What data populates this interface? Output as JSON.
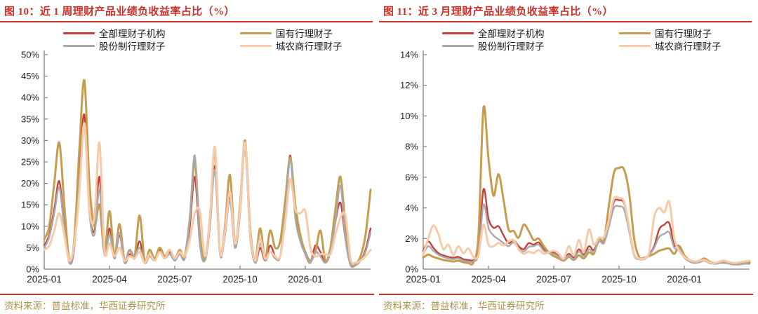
{
  "page": {
    "background": "#ffffff"
  },
  "styles": {
    "title_color": "#c93129",
    "rule_color": "#c93129",
    "source_color": "#b2914e",
    "axis_color": "#7f7f7f",
    "tick_label_color": "#1f1f1f"
  },
  "chart_data": [
    {
      "type": "line",
      "title": "图 10：近 1 周理财产品业绩负收益率占比（%）",
      "source": "资料来源：普益标准，华西证券研究所",
      "legend_position": "top",
      "grid": false,
      "x_unit": "weeks since 2025-01",
      "x_range": [
        0,
        65
      ],
      "ylim": [
        0,
        50
      ],
      "x_ticks": [
        {
          "label": "2025-01",
          "week": 0
        },
        {
          "label": "2025-04",
          "week": 13
        },
        {
          "label": "2025-07",
          "week": 26
        },
        {
          "label": "2025-10",
          "week": 39
        },
        {
          "label": "2026-01",
          "week": 52
        }
      ],
      "y_ticks": [
        {
          "label": "0%",
          "value": 0
        },
        {
          "label": "5%",
          "value": 5
        },
        {
          "label": "10%",
          "value": 10
        },
        {
          "label": "15%",
          "value": 15
        },
        {
          "label": "20%",
          "value": 20
        },
        {
          "label": "25%",
          "value": 25
        },
        {
          "label": "30%",
          "value": 30
        },
        {
          "label": "35%",
          "value": 35
        },
        {
          "label": "40%",
          "value": 40
        },
        {
          "label": "45%",
          "value": 45
        },
        {
          "label": "50%",
          "value": 50
        }
      ],
      "series": [
        {
          "name": "全部理财子机构",
          "color": "#c2413c",
          "values": [
            5.5,
            8,
            14,
            20.5,
            10,
            1.5,
            5,
            22,
            36,
            14,
            9,
            21.5,
            3.5,
            9.5,
            2.5,
            8,
            1.5,
            3.5,
            2.5,
            6.5,
            1.5,
            3,
            2,
            4.5,
            2.5,
            4,
            2,
            4,
            2.5,
            10,
            21.5,
            6,
            2,
            10,
            24,
            3.5,
            8,
            17,
            5,
            13,
            28.5,
            8,
            1.5,
            5,
            2,
            5.5,
            3,
            3,
            14,
            26.5,
            13,
            7,
            3.5,
            1.5,
            5.5,
            4,
            1.5,
            4,
            11,
            15.5,
            7,
            1,
            0.9,
            2,
            4.5,
            9.5
          ]
        },
        {
          "name": "国有行理财子",
          "color": "#c69c4e",
          "values": [
            7,
            10,
            20,
            29.5,
            15,
            2,
            7,
            28,
            44,
            20,
            10,
            15,
            4,
            13.5,
            3,
            10.5,
            2,
            4.5,
            3,
            12.5,
            2,
            4.5,
            2.5,
            5,
            3,
            4.5,
            2.5,
            4.5,
            3,
            12,
            25,
            8,
            2.5,
            12,
            27.5,
            4,
            10,
            22,
            6,
            15,
            30,
            10,
            2,
            9.5,
            2.5,
            9,
            5,
            6.5,
            16,
            26,
            15,
            8,
            4,
            2,
            4,
            9,
            2,
            5,
            14,
            21.5,
            10,
            1.5,
            1.2,
            3,
            8,
            18.5
          ]
        },
        {
          "name": "股份制行理财子",
          "color": "#a9a9a9",
          "values": [
            5,
            7.5,
            13,
            19,
            9.5,
            1.5,
            5,
            20,
            33.5,
            13,
            8,
            18.5,
            3.5,
            8,
            2.5,
            8.5,
            1.5,
            4.5,
            3,
            5,
            1.5,
            3,
            2,
            4,
            2.5,
            3.5,
            2,
            3.5,
            2.5,
            12,
            26.5,
            6,
            2,
            10,
            23,
            3.5,
            8,
            16,
            5,
            13,
            28,
            8,
            1.5,
            6,
            2,
            4,
            2.5,
            3,
            13,
            25.5,
            12,
            6.5,
            3.5,
            1.5,
            4,
            3,
            1.5,
            4,
            11,
            19.5,
            7,
            1,
            0.9,
            2,
            4,
            8.5
          ]
        },
        {
          "name": "城农商行理财子",
          "color": "#f7cba8",
          "values": [
            4.5,
            5.5,
            9,
            13,
            8,
            2,
            6,
            18,
            34,
            14,
            12,
            29.5,
            4.5,
            6,
            3,
            5,
            2,
            3,
            2.5,
            4,
            1.5,
            3.5,
            2,
            4,
            2.5,
            4.5,
            2.5,
            4,
            3,
            7,
            13,
            13.5,
            3,
            12,
            28.5,
            4,
            9,
            18,
            6,
            14,
            29.5,
            9,
            2,
            7,
            2.5,
            4,
            3,
            3,
            11,
            21,
            14,
            13,
            13.5,
            5,
            3,
            3.5,
            3.5,
            3.5,
            8,
            12,
            12.5,
            2.5,
            1.5,
            2,
            3,
            4.5
          ]
        }
      ]
    },
    {
      "type": "line",
      "title": "图 11：近 3 月理财产品业绩负收益率占比（%）",
      "source": "资料来源：普益标准，华西证券研究所",
      "legend_position": "top",
      "grid": false,
      "x_unit": "weeks since 2025-01",
      "x_range": [
        0,
        65
      ],
      "ylim": [
        0,
        14
      ],
      "x_ticks": [
        {
          "label": "2025-01",
          "week": 0
        },
        {
          "label": "2025-04",
          "week": 13
        },
        {
          "label": "2025-07",
          "week": 26
        },
        {
          "label": "2025-10",
          "week": 39
        },
        {
          "label": "2026-01",
          "week": 52
        }
      ],
      "y_ticks": [
        {
          "label": "0%",
          "value": 0
        },
        {
          "label": "2%",
          "value": 2
        },
        {
          "label": "4%",
          "value": 4
        },
        {
          "label": "6%",
          "value": 6
        },
        {
          "label": "8%",
          "value": 8
        },
        {
          "label": "10%",
          "value": 10
        },
        {
          "label": "12%",
          "value": 12
        },
        {
          "label": "14%",
          "value": 14
        }
      ],
      "series": [
        {
          "name": "全部理财子机构",
          "color": "#c2413c",
          "values": [
            1.2,
            1.8,
            1.4,
            1.05,
            0.9,
            0.8,
            0.75,
            0.8,
            0.65,
            0.6,
            0.6,
            1.2,
            5.2,
            3.3,
            2.7,
            2.8,
            2.2,
            1.7,
            1.9,
            1.5,
            1.3,
            1.7,
            1.6,
            1.75,
            1.3,
            1.1,
            1.1,
            0.9,
            0.65,
            1.0,
            0.75,
            1.3,
            0.95,
            1.5,
            1.25,
            1.95,
            1.85,
            3.0,
            4.4,
            4.5,
            4.3,
            2.8,
            1.0,
            0.7,
            0.7,
            0.95,
            1.5,
            2.6,
            2.9,
            3.0,
            1.6,
            1.5,
            0.8,
            0.55,
            0.45,
            0.5,
            0.6,
            0.45,
            0.35,
            0.4,
            0.45,
            0.35,
            0.3,
            0.35,
            0.4,
            0.4
          ]
        },
        {
          "name": "国有行理财子",
          "color": "#c69c4e",
          "values": [
            0.75,
            0.95,
            0.8,
            0.7,
            0.6,
            0.55,
            0.5,
            0.55,
            0.45,
            0.4,
            0.45,
            2.2,
            10.5,
            7.2,
            4.8,
            6.2,
            4.5,
            2.6,
            2.5,
            2.05,
            2.9,
            2.5,
            1.9,
            2.0,
            1.5,
            1.1,
            0.85,
            0.7,
            0.55,
            0.8,
            0.6,
            0.9,
            0.7,
            1.1,
            1.0,
            2.0,
            1.9,
            4.2,
            6.3,
            6.6,
            6.5,
            5.0,
            2.0,
            0.8,
            0.75,
            0.85,
            1.0,
            1.2,
            1.3,
            1.35,
            1.0,
            1.5,
            0.9,
            0.6,
            0.5,
            0.55,
            0.7,
            0.5,
            0.4,
            0.45,
            0.5,
            0.4,
            0.35,
            0.4,
            0.45,
            0.5
          ]
        },
        {
          "name": "股份制行理财子",
          "color": "#a9a9a9",
          "values": [
            1.0,
            1.5,
            1.2,
            0.95,
            0.8,
            0.7,
            0.65,
            0.7,
            0.55,
            0.5,
            0.5,
            1.0,
            4.2,
            2.7,
            2.2,
            1.95,
            1.7,
            1.5,
            1.75,
            1.35,
            1.15,
            1.45,
            1.5,
            1.6,
            1.2,
            1.05,
            1.0,
            0.8,
            0.6,
            0.9,
            0.65,
            1.15,
            0.85,
            1.3,
            1.1,
            1.8,
            1.7,
            2.8,
            4.0,
            4.1,
            3.9,
            2.5,
            0.9,
            0.65,
            0.65,
            0.9,
            1.4,
            2.1,
            2.3,
            2.4,
            1.4,
            1.3,
            0.75,
            0.5,
            0.4,
            0.45,
            0.55,
            0.4,
            0.35,
            0.4,
            0.4,
            0.35,
            0.3,
            0.3,
            0.35,
            0.35
          ]
        },
        {
          "name": "城农商行理财子",
          "color": "#f7cba8",
          "values": [
            0.95,
            2.0,
            2.85,
            2.3,
            1.3,
            1.6,
            0.95,
            1.5,
            1.05,
            1.35,
            0.8,
            0.9,
            2.9,
            1.6,
            1.5,
            1.7,
            1.55,
            1.8,
            1.9,
            1.3,
            1.0,
            1.15,
            1.05,
            1.25,
            1.0,
            1.1,
            1.2,
            1.0,
            0.7,
            1.5,
            0.9,
            1.9,
            1.1,
            2.6,
            1.6,
            2.05,
            2.1,
            3.2,
            4.6,
            4.65,
            4.4,
            2.8,
            1.0,
            0.7,
            0.7,
            1.1,
            3.4,
            4.0,
            3.7,
            4.4,
            2.0,
            1.2,
            0.8,
            0.6,
            0.5,
            0.55,
            0.6,
            0.45,
            0.4,
            0.5,
            0.55,
            0.45,
            0.4,
            0.45,
            0.5,
            0.55
          ]
        }
      ]
    }
  ]
}
